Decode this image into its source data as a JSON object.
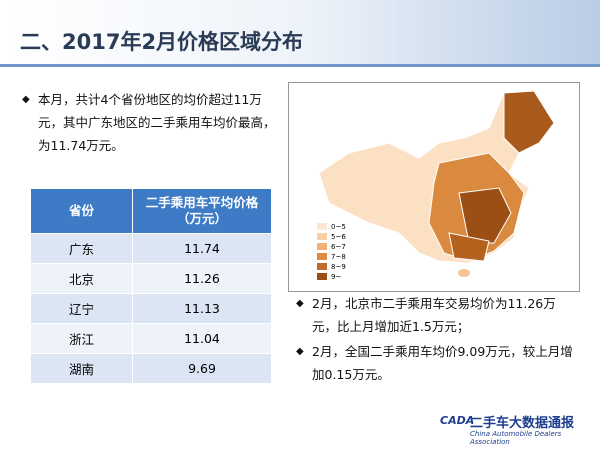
{
  "header": {
    "title": "二、2017年2月价格区域分布"
  },
  "left_bullet": "本月，共计4个省份地区的均价超过11万元，其中广东地区的二手乘用车均价最高，为11.74万元。",
  "table": {
    "headers": [
      "省份",
      "二手乘用车平均价格（万元）"
    ],
    "rows": [
      [
        "广东",
        "11.74"
      ],
      [
        "北京",
        "11.26"
      ],
      [
        "辽宁",
        "11.13"
      ],
      [
        "浙江",
        "11.04"
      ],
      [
        "湖南",
        "9.69"
      ]
    ]
  },
  "map": {
    "legend": [
      "0~5",
      "5~6",
      "6~7",
      "7~8",
      "8~9",
      "9~"
    ]
  },
  "right_bullets": [
    "2月，北京市二手乘用车交易均价为11.26万元，比上月增加近1.5万元；",
    "2月，全国二手乘用车均价9.09万元，较上月增加0.15万元。"
  ],
  "footer": {
    "logo": "CADA",
    "association": "China Automobile Dealers Association",
    "brand": "二手车大数据通报"
  }
}
